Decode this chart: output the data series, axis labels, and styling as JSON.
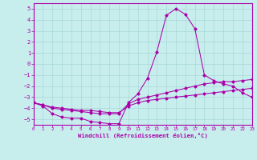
{
  "xlabel": "Windchill (Refroidissement éolien,°C)",
  "xlim": [
    0,
    23
  ],
  "ylim": [
    -5.5,
    5.5
  ],
  "yticks": [
    -5,
    -4,
    -3,
    -2,
    -1,
    0,
    1,
    2,
    3,
    4,
    5
  ],
  "xticks": [
    0,
    1,
    2,
    3,
    4,
    5,
    6,
    7,
    8,
    9,
    10,
    11,
    12,
    13,
    14,
    15,
    16,
    17,
    18,
    19,
    20,
    21,
    22,
    23
  ],
  "bg_color": "#c8eded",
  "grid_color": "#a8d8d8",
  "line_color": "#aa00aa",
  "line1_x": [
    0,
    1,
    2,
    3,
    4,
    5,
    6,
    7,
    8,
    9,
    10,
    11,
    12,
    13,
    14,
    15,
    16,
    17,
    18,
    19,
    20,
    21,
    22,
    23
  ],
  "line1_y": [
    -3.5,
    -3.8,
    -4.5,
    -4.8,
    -4.9,
    -4.9,
    -5.2,
    -5.3,
    -5.4,
    -5.4,
    -3.5,
    -2.7,
    -1.3,
    1.1,
    4.4,
    5.0,
    4.5,
    3.2,
    -1.0,
    -1.5,
    -1.8,
    -2.0,
    -2.6,
    -3.0
  ],
  "line2_x": [
    0,
    1,
    2,
    3,
    4,
    5,
    6,
    7,
    8,
    9,
    10,
    11,
    12,
    13,
    14,
    15,
    16,
    17,
    18,
    19,
    20,
    21,
    22,
    23
  ],
  "line2_y": [
    -3.5,
    -3.7,
    -3.9,
    -4.0,
    -4.1,
    -4.2,
    -4.2,
    -4.3,
    -4.4,
    -4.4,
    -3.8,
    -3.5,
    -3.3,
    -3.2,
    -3.1,
    -3.0,
    -2.9,
    -2.8,
    -2.7,
    -2.6,
    -2.5,
    -2.4,
    -2.3,
    -2.2
  ],
  "line3_x": [
    0,
    1,
    2,
    3,
    4,
    5,
    6,
    7,
    8,
    9,
    10,
    11,
    12,
    13,
    14,
    15,
    16,
    17,
    18,
    19,
    20,
    21,
    22,
    23
  ],
  "line3_y": [
    -3.5,
    -3.7,
    -4.0,
    -4.1,
    -4.2,
    -4.3,
    -4.4,
    -4.5,
    -4.5,
    -4.5,
    -3.6,
    -3.2,
    -3.0,
    -2.8,
    -2.6,
    -2.4,
    -2.2,
    -2.0,
    -1.8,
    -1.7,
    -1.6,
    -1.6,
    -1.5,
    -1.4
  ]
}
